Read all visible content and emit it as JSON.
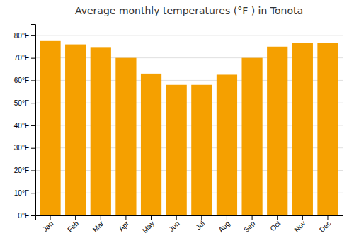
{
  "chart_data": {
    "type": "bar",
    "title": "Average monthly temperatures (°F ) in Tonota",
    "categories": [
      "Jan",
      "Feb",
      "Mar",
      "Apr",
      "May",
      "Jun",
      "Jul",
      "Aug",
      "Sep",
      "Oct",
      "Nov",
      "Dec"
    ],
    "values": [
      77.5,
      76.0,
      74.5,
      70.0,
      63.0,
      58.0,
      58.0,
      62.5,
      70.0,
      75.0,
      76.5,
      76.5
    ],
    "color": "#F5A000",
    "ylim": [
      0,
      85
    ],
    "yticks": [
      {
        "value": 0,
        "label": "0°F"
      },
      {
        "value": 10,
        "label": "10°F"
      },
      {
        "value": 20,
        "label": "20°F"
      },
      {
        "value": 30,
        "label": "30°F"
      },
      {
        "value": 40,
        "label": "40°F"
      },
      {
        "value": 50,
        "label": "50°F"
      },
      {
        "value": 60,
        "label": "60°F"
      },
      {
        "value": 70,
        "label": "70°F"
      },
      {
        "value": 80,
        "label": "80°F"
      }
    ],
    "grid": true
  }
}
